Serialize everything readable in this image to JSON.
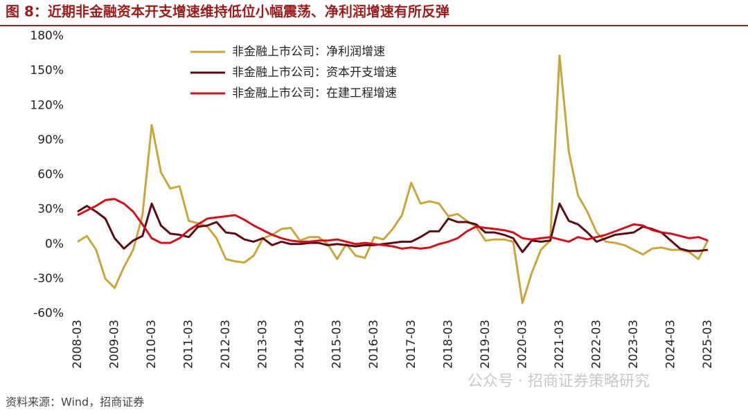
{
  "chart_data": {
    "type": "line",
    "title": "图 8：近期非金融资本开支增速维持低位小幅震荡、净利润增速有所反弹",
    "source": "资料来源：Wind，招商证券",
    "watermark": "公众号 · 招商证券策略研究",
    "categories": [
      "2008-03",
      null,
      null,
      null,
      "2009-03",
      null,
      null,
      null,
      "2010-03",
      null,
      null,
      null,
      "2011-03",
      null,
      null,
      null,
      "2012-03",
      null,
      null,
      null,
      "2013-03",
      null,
      null,
      null,
      "2014-03",
      null,
      null,
      null,
      "2015-03",
      null,
      null,
      null,
      "2016-03",
      null,
      null,
      null,
      "2017-03",
      null,
      null,
      null,
      "2018-03",
      null,
      null,
      null,
      "2019-03",
      null,
      null,
      null,
      "2020-03",
      null,
      null,
      null,
      "2021-03",
      null,
      null,
      null,
      "2022-03",
      null,
      null,
      null,
      "2023-03",
      null,
      null,
      null,
      "2024-03",
      null,
      null,
      null,
      "2025-03"
    ],
    "series": [
      {
        "name": "非金融上市公司：净利润增速",
        "color": "#c9a53c",
        "values": [
          2,
          7,
          -5,
          -30,
          -38,
          -20,
          -5,
          25,
          103,
          62,
          48,
          50,
          20,
          18,
          15,
          5,
          -13,
          -15,
          -16,
          -10,
          5,
          8,
          13,
          14,
          3,
          6,
          6,
          0,
          -13,
          0,
          -10,
          -12,
          6,
          4,
          13,
          25,
          53,
          35,
          37,
          35,
          24,
          26,
          20,
          15,
          3,
          4,
          4,
          2,
          -51,
          -25,
          -5,
          3,
          163,
          80,
          42,
          28,
          10,
          2,
          1,
          -1,
          -5,
          -9,
          -4,
          -3,
          -5,
          -5,
          -7,
          -13,
          3
        ]
      },
      {
        "name": "非金融上市公司：资本开支增速",
        "color": "#5c0a12",
        "values": [
          28,
          33,
          28,
          22,
          5,
          -4,
          3,
          7,
          35,
          16,
          9,
          8,
          6,
          15,
          16,
          19,
          10,
          9,
          4,
          2,
          5,
          -1,
          2,
          0,
          0,
          1,
          1,
          -1,
          0,
          -1,
          -2,
          -1,
          -1,
          0,
          1,
          2,
          2,
          6,
          11,
          11,
          22,
          19,
          19,
          17,
          10,
          10,
          8,
          5,
          -7,
          3,
          2,
          3,
          35,
          20,
          17,
          10,
          2,
          5,
          8,
          9,
          10,
          15,
          13,
          10,
          3,
          -4,
          -6,
          -6,
          -5
        ]
      },
      {
        "name": "非金融上市公司：在建工程增速",
        "color": "#d0101a",
        "values": [
          25,
          29,
          33,
          38,
          39,
          35,
          28,
          17,
          5,
          1,
          1,
          5,
          12,
          17,
          22,
          23,
          24,
          25,
          21,
          16,
          12,
          8,
          5,
          3,
          2,
          2,
          3,
          3,
          4,
          2,
          0,
          1,
          0,
          -1,
          -2,
          -4,
          -3,
          -4,
          -3,
          0,
          2,
          5,
          11,
          15,
          14,
          13,
          12,
          10,
          5,
          4,
          5,
          6,
          4,
          2,
          6,
          4,
          6,
          8,
          11,
          14,
          17,
          16,
          12,
          10,
          9,
          7,
          5,
          6,
          3
        ]
      }
    ],
    "ylim": [
      -60,
      180
    ],
    "yticks": [
      {
        "value": -60,
        "label": "-60%"
      },
      {
        "value": -30,
        "label": "-30%"
      },
      {
        "value": 0,
        "label": "0%"
      },
      {
        "value": 30,
        "label": "30%"
      },
      {
        "value": 60,
        "label": "60%"
      },
      {
        "value": 90,
        "label": "90%"
      },
      {
        "value": 120,
        "label": "120%"
      },
      {
        "value": 150,
        "label": "150%"
      },
      {
        "value": 180,
        "label": "180%"
      }
    ],
    "grid": false,
    "legend": "top-left"
  }
}
